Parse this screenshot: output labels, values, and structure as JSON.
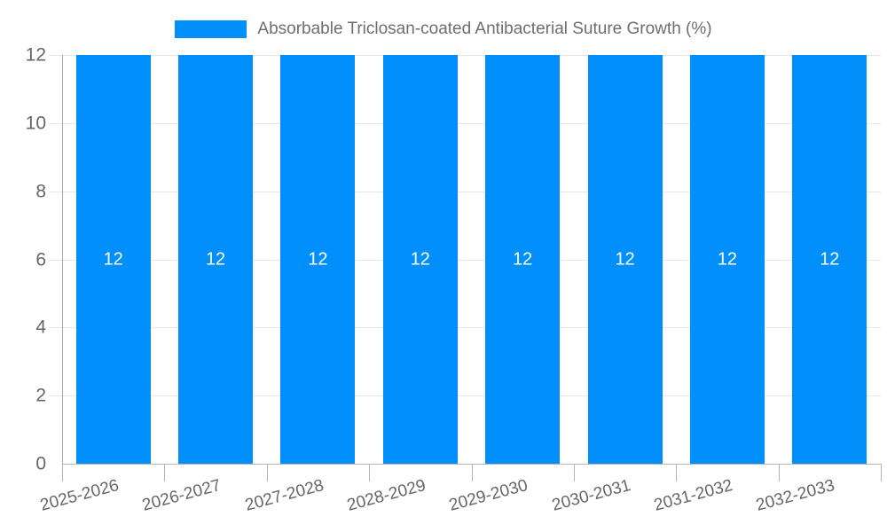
{
  "chart_data": {
    "type": "bar",
    "title": "Absorbable Triclosan-coated Antibacterial Suture Growth (%)",
    "categories": [
      "2025-2026",
      "2026-2027",
      "2027-2028",
      "2028-2029",
      "2029-2030",
      "2030-2031",
      "2031-2032",
      "2032-2033"
    ],
    "values": [
      12,
      12,
      12,
      12,
      12,
      12,
      12,
      12
    ],
    "data_labels": [
      "12",
      "12",
      "12",
      "12",
      "12",
      "12",
      "12",
      "12"
    ],
    "xlabel": "",
    "ylabel": "",
    "ylim": [
      0,
      12
    ],
    "yticks": [
      0,
      2,
      4,
      6,
      8,
      10,
      12
    ],
    "grid": "horizontal",
    "legend_position": "top-center",
    "colors": {
      "bar": "#008FFB",
      "grid": "#e7e7e7",
      "axis": "#a8a8a8",
      "tick": "#b6b6b6",
      "axis_label": "#666666",
      "value_label": "#ffffff",
      "legend_text": "#6e6e6e",
      "background": "#ffffff"
    }
  }
}
